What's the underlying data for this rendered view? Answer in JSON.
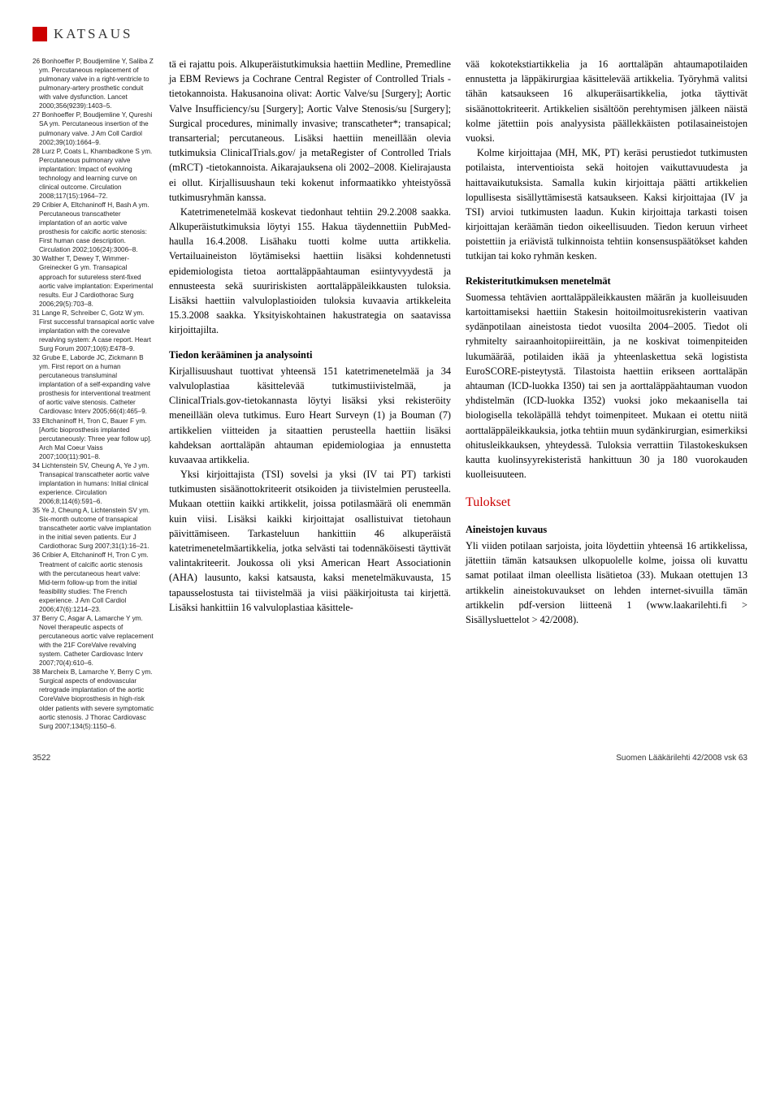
{
  "header": {
    "category": "KATSAUS"
  },
  "references": [
    "26 Bonhoeffer P, Boudjemline Y, Saliba Z ym. Percutaneous replacement of pulmonary valve in a right-ventricle to pulmonary-artery prosthetic conduit with valve dysfunction. Lancet 2000;356(9239):1403–5.",
    "27 Bonhoeffer P, Boudjemline Y, Qureshi SA ym. Percutaneous insertion of the pulmonary valve. J Am Coll Cardiol 2002;39(10):1664–9.",
    "28 Lurz P, Coats L, Khambadkone S ym. Percutaneous pulmonary valve implantation: Impact of evolving technology and learning curve on clinical outcome. Circulation 2008;117(15):1964–72.",
    "29 Cribier A, Eltchaninoff H, Bash A ym. Percutaneous transcatheter implantation of an aortic valve prosthesis for calcific aortic stenosis: First human case description. Circulation 2002;106(24):3006–8.",
    "30 Walther T, Dewey T, Wimmer-Greinecker G ym. Transapical approach for sutureless stent-fixed aortic valve implantation: Experimental results. Eur J Cardiothorac Surg 2006;29(5):703–8.",
    "31 Lange R, Schreiber C, Gotz W ym. First successful transapical aortic valve implantation with the corevalve revalving system: A case report. Heart Surg Forum 2007;10(6):E478–9.",
    "32 Grube E, Laborde JC, Zickmann B ym. First report on a human percutaneous transluminal implantation of a self-expanding valve prosthesis for interventional treatment of aortic valve stenosis. Catheter Cardiovasc Interv 2005;66(4):465–9.",
    "33 Eltchaninoff H, Tron C, Bauer F ym. [Aortic bioprosthesis implanted percutaneously: Three year follow up]. Arch Mal Coeur Vaiss 2007;100(11):901–8.",
    "34 Lichtenstein SV, Cheung A, Ye J ym. Transapical transcatheter aortic valve implantation in humans: Initial clinical experience. Circulation 2006;8;114(6):591–6.",
    "35 Ye J, Cheung A, Lichtenstein SV ym. Six-month outcome of transapical transcatheter aortic valve implantation in the initial seven patients. Eur J Cardiothorac Surg 2007;31(1):16–21.",
    "36 Cribier A, Eltchaninoff H, Tron C ym. Treatment of calcific aortic stenosis with the percutaneous heart valve: Mid-term follow-up from the initial feasibility studies: The French experience. J Am Coll Cardiol 2006;47(6):1214–23.",
    "37 Berry C, Asgar A, Lamarche Y ym. Novel therapeutic aspects of percutaneous aortic valve replacement with the 21F CoreValve revalving system. Catheter Cardiovasc Interv 2007;70(4):610–6.",
    "38 Marcheix B, Lamarche Y, Berry C ym. Surgical aspects of endovascular retrograde implantation of the aortic CoreValve bioprosthesis in high-risk older patients with severe symptomatic aortic stenosis. J Thorac Cardiovasc Surg 2007;134(5):1150–6."
  ],
  "col1": {
    "p1": "tä ei rajattu pois. Alkuperäistutkimuksia haettiin Medline, Premedline ja EBM Reviews ja Cochrane Central Register of Controlled Trials -tietokannoista. Hakusanoina olivat: Aortic Valve/su [Surgery]; Aortic Valve Insufficiency/su [Surgery]; Aortic Valve Stenosis/su [Surgery]; Surgical procedures, minimally invasive; transcatheter*; transapical; transarterial; percutaneous. Lisäksi haettiin meneillään olevia tutkimuksia ClinicalTrials.gov/ ja metaRegister of Controlled Trials (mRCT) -tietokannoista. Aikarajauksena oli 2002–2008. Kielirajausta ei ollut. Kirjallisuushaun teki kokenut informaatikko yhteistyössä tutkimusryhmän kanssa.",
    "p2": "Katetrimenetelmää koskevat tiedonhaut tehtiin 29.2.2008 saakka. Alkuperäistutkimuksia löytyi 155. Hakua täydennettiin PubMed-haulla 16.4.2008. Lisähaku tuotti kolme uutta artikkelia. Vertailuaineiston löytämiseksi haettiin lisäksi kohdennetusti epidemiologista tietoa aorttaläppäahtauman esiintyvyydestä ja ennusteesta sekä suuririskisten aorttaläppäleikkausten tuloksia. Lisäksi haettiin valvuloplastioiden tuloksia kuvaavia artikkeleita 15.3.2008 saakka. Yksityiskohtainen hakustrategia on saatavissa kirjoittajilta.",
    "h3": "Tiedon kerääminen ja analysointi",
    "p3": "Kirjallisuushaut tuottivat yhteensä 151 katetrimenetelmää ja 34 valvuloplastiaa käsittelevää tutkimustiivistelmää, ja ClinicalTrials.gov-tietokannasta löytyi lisäksi yksi rekisteröity meneillään oleva tutkimus. Euro Heart Surveyn (1) ja Bouman (7) artikkelien viitteiden ja sitaattien perusteella haettiin lisäksi kahdeksan aorttaläpän ahtauman epidemiologiaa ja ennustetta kuvaavaa artikkelia.",
    "p4": "Yksi kirjoittajista (TSI) sovelsi ja yksi (IV tai PT) tarkisti tutkimusten sisäänottokriteerit otsikoiden ja tiivistelmien perusteella. Mukaan otettiin kaikki artikkelit, joissa potilasmäärä oli enemmän kuin viisi. Lisäksi kaikki kirjoittajat osallistuivat tietohaun päivittämiseen. Tarkasteluun hankittiin 46 alkuperäistä katetrimenetelmäartikkelia, jotka selvästi tai todennäköisesti täyttivät valintakriteerit. Joukossa oli yksi American Heart Associationin (AHA) lausunto, kaksi katsausta, kaksi menetelmäkuvausta, 15 tapausselostusta tai tiivistelmää ja viisi pääkirjoitusta tai kirjettä. Lisäksi hankittiin 16 valvuloplastiaa käsittele-"
  },
  "col2": {
    "p1": "vää kokotekstiartikkelia ja 16 aorttaläpän ahtaumapotilaiden ennustetta ja läppäkirurgiaa käsittelevää artikkelia. Työryhmä valitsi tähän katsaukseen 16 alkuperäisartikkelia, jotka täyttivät sisäänottokriteerit. Artikkelien sisältöön perehtymisen jälkeen näistä kolme jätettiin pois analyysista päällekkäisten potilasaineistojen vuoksi.",
    "p2": "Kolme kirjoittajaa (MH, MK, PT) keräsi perustiedot tutkimusten potilaista, interventioista sekä hoitojen vaikuttavuudesta ja haittavaikutuksista. Samalla kukin kirjoittaja päätti artikkelien lopullisesta sisällyttämisestä katsaukseen. Kaksi kirjoittajaa (IV ja TSI) arvioi tutkimusten laadun. Kukin kirjoittaja tarkasti toisen kirjoittajan keräämän tiedon oikeellisuuden. Tiedon keruun virheet poistettiin ja eriävistä tulkinnoista tehtiin konsensuspäätökset kahden tutkijan tai koko ryhmän kesken.",
    "h3a": "Rekisteritutkimuksen menetelmät",
    "p3": "Suomessa tehtävien aorttaläppäleikkausten määrän ja kuolleisuuden kartoittamiseksi haettiin Stakesin hoitoilmoitusrekisterin vaativan sydänpotilaan aineistosta tiedot vuosilta 2004–2005. Tiedot oli ryhmitelty sairaanhoitopiireittäin, ja ne koskivat toimenpiteiden lukumäärää, potilaiden ikää ja yhteenlaskettua sekä logistista EuroSCORE-pisteytystä. Tilastoista haettiin erikseen aorttaläpän ahtauman (ICD-luokka I350) tai sen ja aorttaläppäahtauman vuodon yhdistelmän (ICD-luokka I352) vuoksi joko mekaanisella tai biologisella tekoläpällä tehdyt toimenpiteet. Mukaan ei otettu niitä aorttaläppäleikkauksia, jotka tehtiin muun sydänkirurgian, esimerkiksi ohitusleikkauksen, yhteydessä. Tuloksia verrattiin Tilastokeskuksen kautta kuolinsyyrekisteristä hankittuun 30 ja 180 vuorokauden kuolleisuuteen.",
    "h2": "Tulokset",
    "h3b": "Aineistojen kuvaus",
    "p4": "Yli viiden potilaan sarjoista, joita löydettiin yhteensä 16 artikkelissa, jätettiin tämän katsauksen ulkopuolelle kolme, joissa oli kuvattu samat potilaat ilman oleellista lisätietoa (33). Mukaan otettujen 13 artikkelin aineistokuvaukset on lehden internet-sivuilla tämän artikkelin pdf-version liitteenä 1 (www.laakarilehti.fi > Sisällysluettelot > 42/2008)."
  },
  "footer": {
    "page": "3522",
    "journal": "Suomen Lääkärilehti 42/2008 vsk 63"
  },
  "colors": {
    "accent": "#cc0000",
    "text": "#000000",
    "background": "#ffffff"
  }
}
